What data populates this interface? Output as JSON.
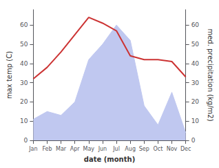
{
  "chart_data": {
    "type": "line",
    "xlabel": "date (month)",
    "ylabel": "max temp (C)",
    "y2label": "med. precipitation (kg/m2)",
    "categories": [
      "Jan",
      "Feb",
      "Mar",
      "Apr",
      "May",
      "Jun",
      "Jul",
      "Aug",
      "Sep",
      "Oct",
      "Nov",
      "Dec"
    ],
    "series": [
      {
        "type": "line",
        "color": "#cc3333",
        "values": [
          32,
          38,
          46,
          55,
          64,
          61,
          57,
          44,
          42,
          42,
          41,
          33
        ]
      },
      {
        "type": "area",
        "color": "#c0c8f0",
        "axis": "y2",
        "values": [
          11,
          15,
          13,
          20,
          42,
          50,
          60,
          52,
          18,
          8,
          25,
          4
        ]
      }
    ],
    "ylim": [
      0,
      68
    ],
    "yticks": [
      0,
      10,
      20,
      30,
      40,
      50,
      60
    ],
    "y2lim": [
      0,
      68
    ],
    "y2ticks": [
      0,
      10,
      20,
      30,
      40,
      50,
      60
    ],
    "grid": false
  }
}
